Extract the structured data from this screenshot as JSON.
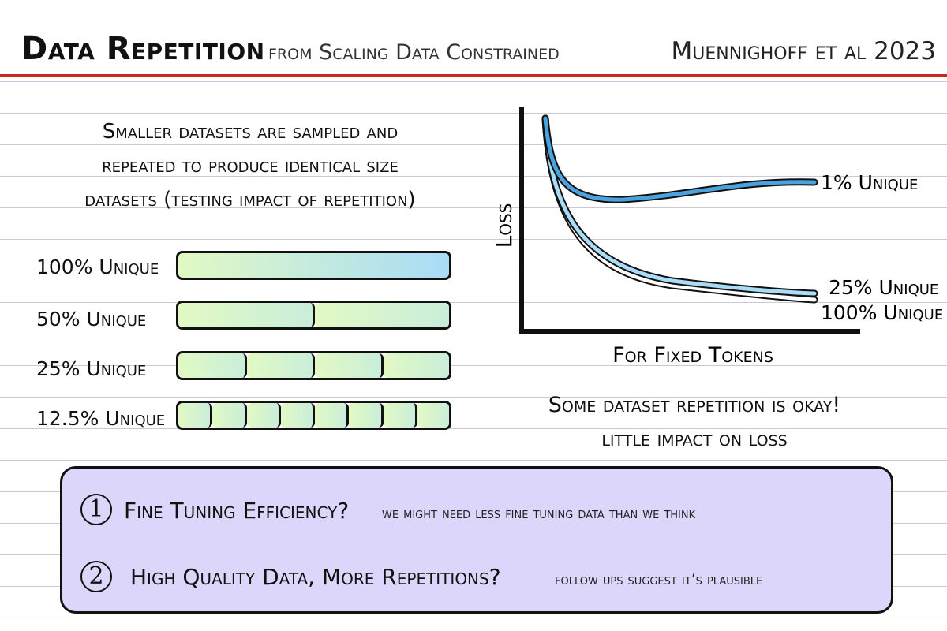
{
  "header": {
    "title": "Data Repetition",
    "subtitle": "from Scaling Data Constrained",
    "credit": "Muennighoff et al 2023"
  },
  "description": {
    "line1": "Smaller datasets are sampled and",
    "line2": "repeated to produce identical size",
    "line3": "datasets (testing impact of repetition)"
  },
  "datasets": [
    {
      "label": "100% Unique",
      "segments": 1
    },
    {
      "label": "50% Unique",
      "segments": 2
    },
    {
      "label": "25% Unique",
      "segments": 4
    },
    {
      "label": "12.5% Unique",
      "segments": 8
    }
  ],
  "chart_data": {
    "type": "line",
    "title": "",
    "xlabel": "For Fixed Tokens",
    "ylabel": "Loss",
    "grid": false,
    "series": [
      {
        "name": "1% Unique",
        "color": "#4aa3df",
        "trend": "drops steeply, bottoms out early, then rises and plateaus"
      },
      {
        "name": "25% Unique",
        "color": "#a9dcf7",
        "trend": "monotonic decrease"
      },
      {
        "name": "100% Unique",
        "color": "#ffffff",
        "trend": "monotonic decrease, lowest"
      }
    ]
  },
  "conclusion": {
    "line1": "Some dataset repetition is okay!",
    "line2": "little impact on loss"
  },
  "questions": [
    {
      "number": "1",
      "title": "Fine Tuning Efficiency?",
      "note": "we might need less fine tuning data than we think"
    },
    {
      "number": "2",
      "title": "High Quality Data, More Repetitions?",
      "note": "follow ups suggest it’s plausible"
    }
  ],
  "colors": {
    "header_rule": "#c62828",
    "callout_bg": "#ddd6fb",
    "bar_gradient_start": "#e2f9c4",
    "bar_gradient_end": "#a9dcf7"
  }
}
